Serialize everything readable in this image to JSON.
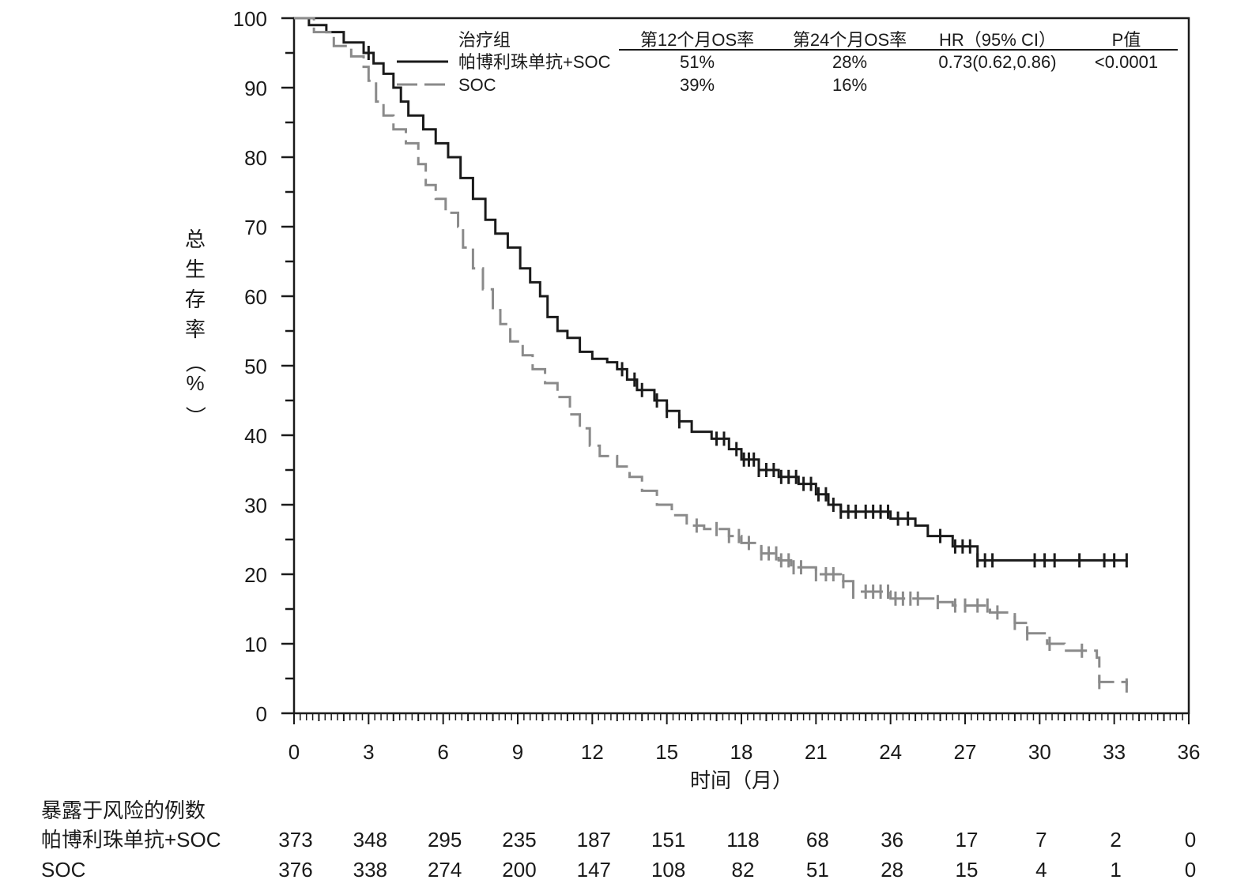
{
  "chart_data": {
    "type": "line",
    "subtype": "kaplan-meier",
    "xlabel": "时间（月）",
    "ylabel": "总生存率（%）",
    "xlim": [
      0,
      36
    ],
    "ylim": [
      0,
      100
    ],
    "x_ticks": [
      0,
      3,
      6,
      9,
      12,
      15,
      18,
      21,
      24,
      27,
      30,
      33,
      36
    ],
    "y_ticks": [
      0,
      10,
      20,
      30,
      40,
      50,
      60,
      70,
      80,
      90,
      100
    ],
    "grid": false,
    "legend_position": "top",
    "legend": {
      "headers": {
        "group": "治疗组",
        "os12": "第12个月OS率",
        "os24": "第24个月OS率",
        "hr": "HR（95% CI）",
        "p": "P值"
      },
      "rows": [
        {
          "name": "帕博利珠单抗+SOC",
          "os12": "51%",
          "os24": "28%",
          "hr": "0.73(0.62,0.86)",
          "p": "<0.0001"
        },
        {
          "name": "SOC",
          "os12": "39%",
          "os24": "16%",
          "hr": "",
          "p": ""
        }
      ]
    },
    "series": [
      {
        "name": "帕博利珠单抗+SOC",
        "color": "#1a1a1a",
        "dash": "solid",
        "points": [
          [
            0,
            100
          ],
          [
            0.6,
            99
          ],
          [
            1.3,
            98
          ],
          [
            2,
            96.5
          ],
          [
            2.8,
            95
          ],
          [
            3.2,
            93.5
          ],
          [
            3.6,
            92
          ],
          [
            4,
            90
          ],
          [
            4.3,
            88
          ],
          [
            4.6,
            86
          ],
          [
            5.2,
            84
          ],
          [
            5.7,
            82
          ],
          [
            6.2,
            80
          ],
          [
            6.7,
            77
          ],
          [
            7.2,
            74
          ],
          [
            7.7,
            71
          ],
          [
            8.1,
            69
          ],
          [
            8.6,
            67
          ],
          [
            9.1,
            64
          ],
          [
            9.5,
            62
          ],
          [
            9.9,
            60
          ],
          [
            10.2,
            57
          ],
          [
            10.6,
            55
          ],
          [
            11.0,
            54
          ],
          [
            11.5,
            52
          ],
          [
            12.0,
            51
          ],
          [
            12.6,
            50.5
          ],
          [
            13.0,
            49.5
          ],
          [
            13.4,
            48
          ],
          [
            13.8,
            46.5
          ],
          [
            14.5,
            45
          ],
          [
            15.0,
            43.5
          ],
          [
            15.5,
            42
          ],
          [
            16.0,
            40.5
          ],
          [
            16.8,
            39.5
          ],
          [
            17.5,
            38
          ],
          [
            18.0,
            36.5
          ],
          [
            18.7,
            35
          ],
          [
            19.5,
            34
          ],
          [
            20.3,
            33
          ],
          [
            21.0,
            31.5
          ],
          [
            21.5,
            30
          ],
          [
            22.0,
            29
          ],
          [
            24.0,
            28
          ],
          [
            25.0,
            27
          ],
          [
            25.5,
            25.5
          ],
          [
            26.5,
            24
          ],
          [
            27.5,
            22
          ],
          [
            33.5,
            22
          ]
        ],
        "censor_x": [
          3.0,
          13.2,
          13.7,
          14.0,
          14.6,
          15.0,
          15.5,
          17.0,
          17.3,
          17.8,
          18.1,
          18.3,
          18.5,
          18.7,
          19.0,
          19.3,
          19.6,
          19.9,
          20.2,
          20.5,
          20.8,
          21.1,
          21.4,
          21.7,
          22.0,
          22.3,
          22.6,
          23.0,
          23.3,
          23.6,
          23.9,
          24.3,
          24.7,
          26.0,
          26.6,
          26.9,
          27.2,
          27.5,
          27.8,
          28.1,
          29.8,
          30.2,
          30.6,
          31.6,
          32.6,
          33.0,
          33.5
        ]
      },
      {
        "name": "SOC",
        "color": "#8a8a8a",
        "dash": "dashed",
        "points": [
          [
            0,
            100
          ],
          [
            0.8,
            98
          ],
          [
            1.6,
            96
          ],
          [
            2.3,
            94.5
          ],
          [
            2.8,
            93
          ],
          [
            3.0,
            91
          ],
          [
            3.3,
            88
          ],
          [
            3.6,
            86
          ],
          [
            4.0,
            84
          ],
          [
            4.5,
            82
          ],
          [
            5.0,
            79
          ],
          [
            5.3,
            76
          ],
          [
            5.7,
            74
          ],
          [
            6.1,
            72
          ],
          [
            6.6,
            70
          ],
          [
            6.8,
            67
          ],
          [
            7.2,
            64
          ],
          [
            7.6,
            61
          ],
          [
            8.0,
            58
          ],
          [
            8.3,
            56
          ],
          [
            8.7,
            53.5
          ],
          [
            9.2,
            51.5
          ],
          [
            9.6,
            49.5
          ],
          [
            10.1,
            47.5
          ],
          [
            10.6,
            45.5
          ],
          [
            11.1,
            43
          ],
          [
            11.5,
            41
          ],
          [
            11.9,
            38.5
          ],
          [
            12.3,
            37
          ],
          [
            13.0,
            35.5
          ],
          [
            13.5,
            34
          ],
          [
            14.0,
            32
          ],
          [
            14.6,
            30
          ],
          [
            15.2,
            28.5
          ],
          [
            15.8,
            27
          ],
          [
            16.5,
            26.5
          ],
          [
            17.5,
            25.5
          ],
          [
            18.0,
            24.5
          ],
          [
            18.8,
            23
          ],
          [
            19.5,
            22
          ],
          [
            20.0,
            21
          ],
          [
            21.0,
            20
          ],
          [
            22.0,
            19
          ],
          [
            22.5,
            17.5
          ],
          [
            24.0,
            16.5
          ],
          [
            25.8,
            16
          ],
          [
            26.5,
            15.5
          ],
          [
            28.0,
            14.5
          ],
          [
            29.0,
            13
          ],
          [
            29.5,
            11.5
          ],
          [
            30.3,
            10
          ],
          [
            31.0,
            9
          ],
          [
            32.3,
            8
          ],
          [
            32.4,
            4.5
          ],
          [
            33.5,
            4
          ]
        ],
        "censor_x": [
          16.2,
          17.0,
          17.5,
          17.9,
          18.3,
          18.8,
          19.1,
          19.4,
          19.6,
          19.9,
          20.1,
          20.4,
          21.0,
          21.4,
          21.7,
          22.1,
          22.5,
          23.0,
          23.3,
          23.6,
          23.9,
          24.2,
          24.5,
          24.8,
          25.1,
          25.9,
          26.6,
          27.0,
          27.5,
          27.9,
          28.3,
          29.0,
          29.5,
          30.4,
          31.7,
          32.4,
          33.5
        ]
      }
    ],
    "risk_table": {
      "title": "暴露于风险的例数",
      "x": [
        0,
        3,
        6,
        9,
        12,
        15,
        18,
        21,
        24,
        27,
        30,
        33,
        36
      ],
      "rows": [
        {
          "name": "帕博利珠单抗+SOC",
          "counts": [
            373,
            348,
            295,
            235,
            187,
            151,
            118,
            68,
            36,
            17,
            7,
            2,
            0
          ]
        },
        {
          "name": "SOC",
          "counts": [
            376,
            338,
            274,
            200,
            147,
            108,
            82,
            51,
            28,
            15,
            4,
            1,
            0
          ]
        }
      ]
    }
  }
}
